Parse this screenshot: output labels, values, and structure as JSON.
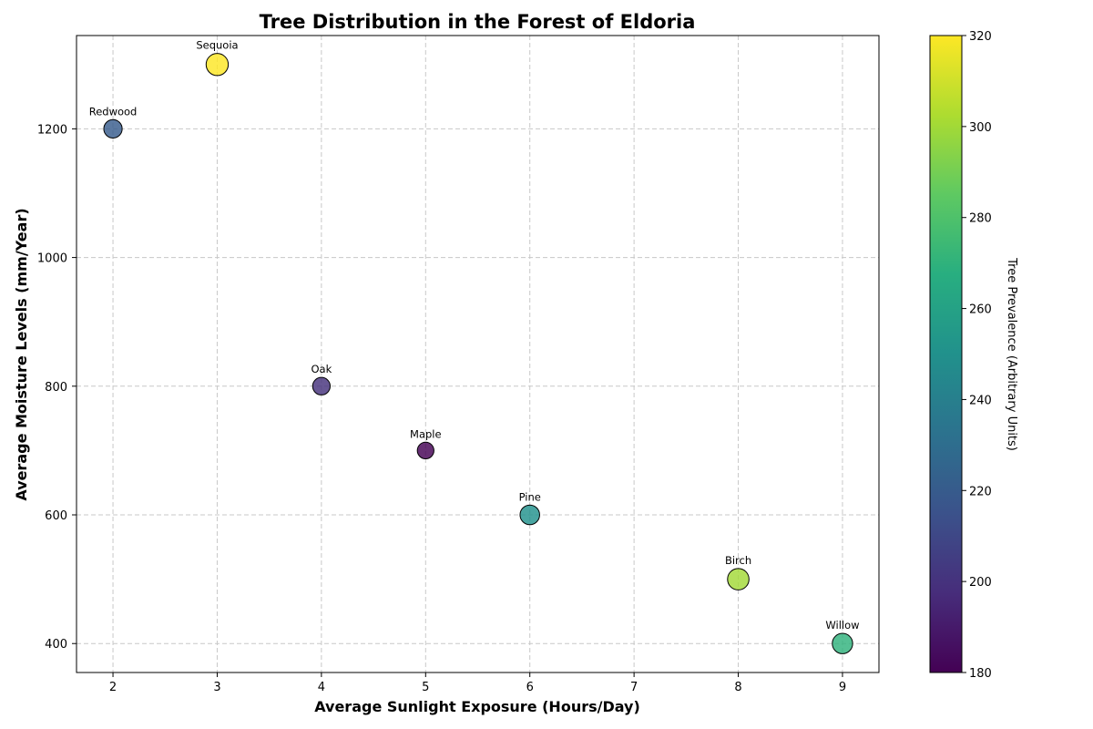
{
  "chart_data": {
    "type": "scatter",
    "title": "Tree Distribution in the Forest of Eldoria",
    "xlabel": "Average Sunlight Exposure (Hours/Day)",
    "ylabel": "Average Moisture Levels (mm/Year)",
    "xlim": [
      1.65,
      9.35
    ],
    "ylim": [
      355,
      1345
    ],
    "xticks": [
      2,
      3,
      4,
      5,
      6,
      7,
      8,
      9
    ],
    "yticks": [
      400,
      600,
      800,
      1000,
      1200
    ],
    "grid": true,
    "colormap": "viridis",
    "colorbar": {
      "label": "Tree Prevalence (Arbitrary Units)",
      "range": [
        180,
        320
      ],
      "ticks": [
        180,
        200,
        220,
        240,
        260,
        280,
        300,
        320
      ]
    },
    "points": [
      {
        "name": "Redwood",
        "x": 2,
        "y": 1200,
        "value": 220
      },
      {
        "name": "Sequoia",
        "x": 3,
        "y": 1300,
        "value": 320
      },
      {
        "name": "Oak",
        "x": 4,
        "y": 800,
        "value": 200
      },
      {
        "name": "Maple",
        "x": 5,
        "y": 700,
        "value": 180
      },
      {
        "name": "Pine",
        "x": 6,
        "y": 600,
        "value": 250
      },
      {
        "name": "Birch",
        "x": 8,
        "y": 500,
        "value": 300
      },
      {
        "name": "Willow",
        "x": 9,
        "y": 400,
        "value": 270
      }
    ]
  }
}
